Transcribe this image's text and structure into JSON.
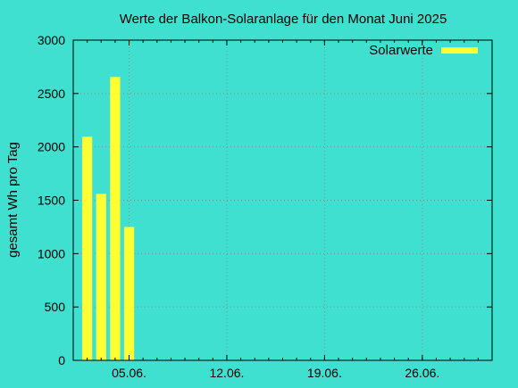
{
  "chart_data": {
    "type": "bar",
    "title": "Werte der Balkon-Solaranlage für den Monat Juni 2025",
    "ylabel": "gesamt Wh pro Tag",
    "xlabel": "",
    "ylim": [
      0,
      3000
    ],
    "yticks": [
      "0",
      "500",
      "1000",
      "1500",
      "2000",
      "2500",
      "3000"
    ],
    "xlim": [
      "2025-06-01",
      "2025-07-01"
    ],
    "xticks": [
      {
        "date": "2025-06-05",
        "label": "05.06."
      },
      {
        "date": "2025-06-12",
        "label": "12.06."
      },
      {
        "date": "2025-06-19",
        "label": "19.06."
      },
      {
        "date": "2025-06-26",
        "label": "26.06."
      }
    ],
    "grid": true,
    "legend_position": "top-right",
    "bar_color": "#FFFF33",
    "background_color": "#40E0D0",
    "series": [
      {
        "name": "Solarwerte",
        "x": [
          "2025-06-02",
          "2025-06-03",
          "2025-06-04",
          "2025-06-05"
        ],
        "values": [
          2095,
          1560,
          2655,
          1250
        ]
      }
    ]
  }
}
